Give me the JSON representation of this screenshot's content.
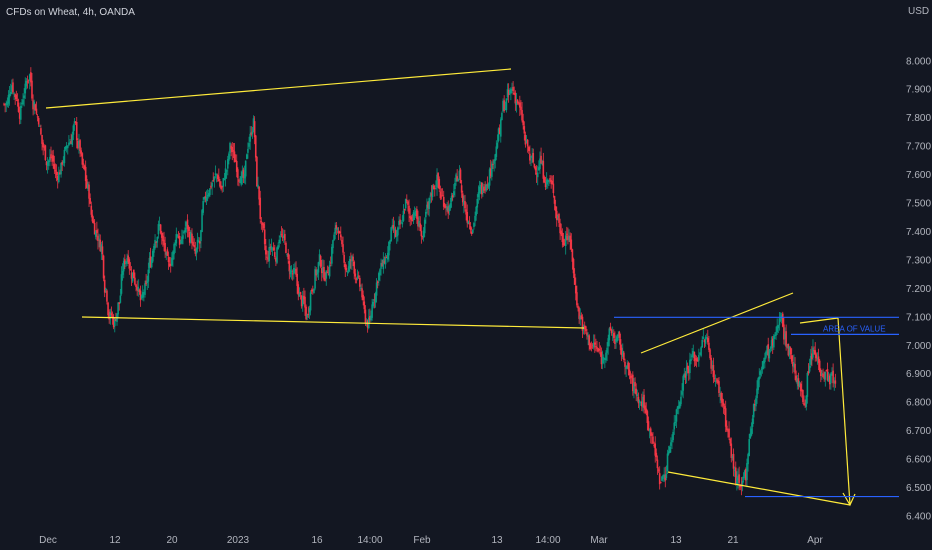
{
  "header": {
    "title": "CFDs on Wheat, 4h, OANDA"
  },
  "chart_data": {
    "type": "candlestick",
    "symbol": "CFDs on Wheat, 4h, OANDA",
    "y_unit": "USD",
    "ylim": [
      6.37,
      8.11
    ],
    "y_ticks": [
      "8.000",
      "7.900",
      "7.800",
      "7.700",
      "7.600",
      "7.500",
      "7.400",
      "7.300",
      "7.200",
      "7.100",
      "7.000",
      "6.900",
      "6.800",
      "6.700",
      "6.600",
      "6.500",
      "6.400"
    ],
    "x_ticks": [
      "Dec",
      "12",
      "20",
      "2023",
      "16",
      "14:00",
      "Feb",
      "13",
      "14:00",
      "Mar",
      "13",
      "21",
      "Apr"
    ],
    "close_path": [
      7.85,
      7.92,
      7.88,
      7.82,
      7.9,
      7.95,
      7.85,
      7.8,
      7.7,
      7.65,
      7.66,
      7.6,
      7.62,
      7.68,
      7.72,
      7.77,
      7.7,
      7.62,
      7.55,
      7.45,
      7.4,
      7.35,
      7.2,
      7.1,
      7.08,
      7.15,
      7.28,
      7.32,
      7.25,
      7.22,
      7.15,
      7.2,
      7.3,
      7.38,
      7.42,
      7.35,
      7.28,
      7.32,
      7.4,
      7.36,
      7.42,
      7.38,
      7.32,
      7.36,
      7.5,
      7.55,
      7.58,
      7.6,
      7.55,
      7.62,
      7.7,
      7.65,
      7.6,
      7.58,
      7.72,
      7.78,
      7.55,
      7.4,
      7.3,
      7.35,
      7.32,
      7.4,
      7.36,
      7.28,
      7.25,
      7.2,
      7.15,
      7.1,
      7.2,
      7.26,
      7.3,
      7.25,
      7.28,
      7.38,
      7.42,
      7.32,
      7.27,
      7.3,
      7.25,
      7.2,
      7.1,
      7.08,
      7.18,
      7.25,
      7.28,
      7.32,
      7.4,
      7.38,
      7.42,
      7.5,
      7.45,
      7.48,
      7.42,
      7.38,
      7.48,
      7.55,
      7.58,
      7.52,
      7.5,
      7.48,
      7.55,
      7.6,
      7.5,
      7.45,
      7.42,
      7.5,
      7.55,
      7.58,
      7.62,
      7.68,
      7.75,
      7.85,
      7.88,
      7.9,
      7.86,
      7.8,
      7.7,
      7.65,
      7.62,
      7.65,
      7.6,
      7.58,
      7.55,
      7.45,
      7.38,
      7.4,
      7.35,
      7.2,
      7.1,
      7.05,
      7.02,
      7.0,
      6.98,
      6.95,
      7.0,
      7.05,
      7.02,
      7.0,
      6.95,
      6.9,
      6.85,
      6.82,
      6.8,
      6.75,
      6.7,
      6.6,
      6.52,
      6.55,
      6.65,
      6.72,
      6.8,
      6.88,
      6.92,
      6.96,
      6.95,
      7.0,
      7.02,
      6.98,
      6.9,
      6.85,
      6.8,
      6.7,
      6.6,
      6.52,
      6.48,
      6.55,
      6.7,
      6.8,
      6.88,
      6.95,
      6.98,
      7.0,
      7.05,
      7.12,
      7.02,
      6.98,
      6.92,
      6.85,
      6.8,
      6.9,
      6.97,
      6.95,
      6.92,
      6.9,
      6.88,
      6.86
    ],
    "drawings": {
      "yellow_trendlines": [
        {
          "from": [
            "Dec",
            7.78
          ],
          "to": [
            "13",
            7.92
          ]
        },
        {
          "from": [
            "12",
            7.05
          ],
          "to": [
            "Mar",
            7.02
          ]
        },
        {
          "from": [
            "Mar",
            6.93
          ],
          "to": [
            "21",
            7.13
          ]
        },
        {
          "from": [
            "13",
            6.52
          ],
          "to": [
            "Apr",
            6.41
          ]
        },
        {
          "from": [
            "21",
            7.03
          ],
          "to": [
            "Apr",
            7.05
          ]
        },
        {
          "from": [
            "Apr",
            7.05
          ],
          "to": [
            "Apr",
            6.41
          ],
          "arrow": true
        }
      ],
      "blue_lines": [
        {
          "y": 7.1,
          "label": ""
        },
        {
          "y": 7.04,
          "label": "AREA OF VALUE"
        },
        {
          "y": 6.47,
          "label": ""
        }
      ]
    },
    "colors": {
      "background": "#131722",
      "up": "#089981",
      "down": "#f23645",
      "trend": "#ffeb3b",
      "zone": "#2962ff"
    }
  }
}
